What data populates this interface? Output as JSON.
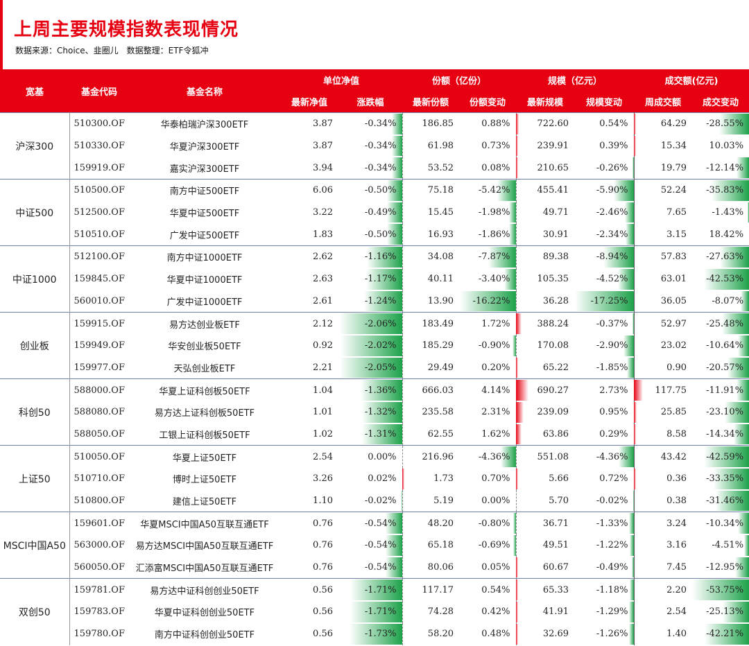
{
  "header": {
    "title": "上周主要规模指数表现情况",
    "source": "数据来源：Choice、韭圈儿",
    "compiler": "数据整理：ETF令狐冲"
  },
  "columns": {
    "broad": "宽基",
    "code": "基金代码",
    "name": "基金名称",
    "nav_group": "单位净值",
    "share_group": "份额（亿份）",
    "scale_group": "规模（亿元）",
    "turnover_group": "成交额(亿元)",
    "nav": "最新净值",
    "change": "涨跌幅",
    "shares": "最新份额",
    "share_change": "份额变动",
    "scale": "最新规模",
    "scale_change": "规模变动",
    "weekly_turnover": "周成交额",
    "turnover_change": "成交变动"
  },
  "colors": {
    "accent": "#e60012",
    "negative": "#1da24a",
    "positive": "#e60012"
  },
  "groups": [
    {
      "category": "沪深300",
      "rows": [
        {
          "code": "510300.OF",
          "name": "华泰柏瑞沪深300ETF",
          "nav": "3.87",
          "change": "-0.34%",
          "shares": "186.85",
          "share_change": "0.88%",
          "scale": "722.60",
          "scale_change": "0.54%",
          "turnover": "64.29",
          "turnover_change": "-28.55%"
        },
        {
          "code": "510330.OF",
          "name": "华夏沪深300ETF",
          "nav": "3.87",
          "change": "-0.34%",
          "shares": "61.98",
          "share_change": "0.73%",
          "scale": "239.91",
          "scale_change": "0.39%",
          "turnover": "15.34",
          "turnover_change": "10.03%"
        },
        {
          "code": "159919.OF",
          "name": "嘉实沪深300ETF",
          "nav": "3.94",
          "change": "-0.34%",
          "shares": "53.52",
          "share_change": "0.08%",
          "scale": "210.65",
          "scale_change": "-0.26%",
          "turnover": "19.79",
          "turnover_change": "-12.14%"
        }
      ]
    },
    {
      "category": "中证500",
      "rows": [
        {
          "code": "510500.OF",
          "name": "南方中证500ETF",
          "nav": "6.06",
          "change": "-0.50%",
          "shares": "75.18",
          "share_change": "-5.42%",
          "scale": "455.41",
          "scale_change": "-5.90%",
          "turnover": "52.24",
          "turnover_change": "-35.83%"
        },
        {
          "code": "512500.OF",
          "name": "华夏中证500ETF",
          "nav": "3.22",
          "change": "-0.49%",
          "shares": "15.45",
          "share_change": "-1.98%",
          "scale": "49.71",
          "scale_change": "-2.46%",
          "turnover": "7.65",
          "turnover_change": "-1.43%"
        },
        {
          "code": "510510.OF",
          "name": "广发中证500ETF",
          "nav": "1.83",
          "change": "-0.50%",
          "shares": "16.93",
          "share_change": "-1.86%",
          "scale": "30.91",
          "scale_change": "-2.34%",
          "turnover": "3.15",
          "turnover_change": "18.42%"
        }
      ]
    },
    {
      "category": "中证1000",
      "rows": [
        {
          "code": "512100.OF",
          "name": "南方中证1000ETF",
          "nav": "2.62",
          "change": "-1.16%",
          "shares": "34.08",
          "share_change": "-7.87%",
          "scale": "89.38",
          "scale_change": "-8.94%",
          "turnover": "57.83",
          "turnover_change": "-27.63%"
        },
        {
          "code": "159845.OF",
          "name": "华夏中证1000ETF",
          "nav": "2.63",
          "change": "-1.17%",
          "shares": "40.11",
          "share_change": "-3.40%",
          "scale": "105.35",
          "scale_change": "-4.52%",
          "turnover": "63.01",
          "turnover_change": "-42.53%"
        },
        {
          "code": "560010.OF",
          "name": "广发中证1000ETF",
          "nav": "2.61",
          "change": "-1.24%",
          "shares": "13.90",
          "share_change": "-16.22%",
          "scale": "36.28",
          "scale_change": "-17.25%",
          "turnover": "36.05",
          "turnover_change": "-8.07%"
        }
      ]
    },
    {
      "category": "创业板",
      "rows": [
        {
          "code": "159915.OF",
          "name": "易方达创业板ETF",
          "nav": "2.12",
          "change": "-2.06%",
          "shares": "183.49",
          "share_change": "1.72%",
          "scale": "388.24",
          "scale_change": "-0.37%",
          "turnover": "52.97",
          "turnover_change": "-25.48%"
        },
        {
          "code": "159949.OF",
          "name": "华安创业板50ETF",
          "nav": "0.92",
          "change": "-2.02%",
          "shares": "185.29",
          "share_change": "-0.90%",
          "scale": "170.08",
          "scale_change": "-2.90%",
          "turnover": "23.02",
          "turnover_change": "-10.64%"
        },
        {
          "code": "159977.OF",
          "name": "天弘创业板ETF",
          "nav": "2.21",
          "change": "-2.05%",
          "shares": "29.49",
          "share_change": "0.20%",
          "scale": "65.22",
          "scale_change": "-1.85%",
          "turnover": "0.90",
          "turnover_change": "-20.57%"
        }
      ]
    },
    {
      "category": "科创50",
      "rows": [
        {
          "code": "588000.OF",
          "name": "华夏上证科创板50ETF",
          "nav": "1.04",
          "change": "-1.36%",
          "shares": "666.03",
          "share_change": "4.14%",
          "scale": "690.27",
          "scale_change": "2.73%",
          "turnover": "117.75",
          "turnover_change": "-11.91%"
        },
        {
          "code": "588080.OF",
          "name": "易方达上证科创板50ETF",
          "nav": "1.01",
          "change": "-1.32%",
          "shares": "235.58",
          "share_change": "2.31%",
          "scale": "239.09",
          "scale_change": "0.95%",
          "turnover": "25.85",
          "turnover_change": "-23.10%"
        },
        {
          "code": "588050.OF",
          "name": "工银上证科创板50ETF",
          "nav": "1.02",
          "change": "-1.31%",
          "shares": "62.55",
          "share_change": "1.62%",
          "scale": "63.86",
          "scale_change": "0.29%",
          "turnover": "8.58",
          "turnover_change": "-14.34%"
        }
      ]
    },
    {
      "category": "上证50",
      "rows": [
        {
          "code": "510050.OF",
          "name": "华夏上证50ETF",
          "nav": "2.54",
          "change": "0.00%",
          "shares": "216.96",
          "share_change": "-4.36%",
          "scale": "551.08",
          "scale_change": "-4.36%",
          "turnover": "43.42",
          "turnover_change": "-42.59%"
        },
        {
          "code": "510710.OF",
          "name": "博时上证50ETF",
          "nav": "3.26",
          "change": "0.02%",
          "shares": "1.73",
          "share_change": "0.70%",
          "scale": "5.66",
          "scale_change": "0.72%",
          "turnover": "0.36",
          "turnover_change": "-33.35%"
        },
        {
          "code": "510800.OF",
          "name": "建信上证50ETF",
          "nav": "1.10",
          "change": "-0.02%",
          "shares": "5.19",
          "share_change": "0.00%",
          "scale": "5.70",
          "scale_change": "-0.02%",
          "turnover": "0.38",
          "turnover_change": "-31.46%"
        }
      ]
    },
    {
      "category": "MSCI中国A50",
      "rows": [
        {
          "code": "159601.OF",
          "name": "华夏MSCI中国A50互联互通ETF",
          "nav": "0.76",
          "change": "-0.54%",
          "shares": "48.20",
          "share_change": "-0.80%",
          "scale": "36.71",
          "scale_change": "-1.33%",
          "turnover": "3.24",
          "turnover_change": "-10.34%"
        },
        {
          "code": "563000.OF",
          "name": "易方达MSCI中国A50互联互通ETF",
          "nav": "0.76",
          "change": "-0.54%",
          "shares": "65.18",
          "share_change": "-0.69%",
          "scale": "49.51",
          "scale_change": "-1.22%",
          "turnover": "3.16",
          "turnover_change": "-4.51%"
        },
        {
          "code": "560050.OF",
          "name": "汇添富MSCI中国A50互联互通ETF",
          "nav": "0.76",
          "change": "-0.54%",
          "shares": "80.06",
          "share_change": "0.05%",
          "scale": "60.67",
          "scale_change": "-0.49%",
          "turnover": "7.45",
          "turnover_change": "-12.95%"
        }
      ]
    },
    {
      "category": "双创50",
      "rows": [
        {
          "code": "159781.OF",
          "name": "易方达中证科创创业50ETF",
          "nav": "0.56",
          "change": "-1.71%",
          "shares": "117.17",
          "share_change": "0.54%",
          "scale": "65.33",
          "scale_change": "-1.18%",
          "turnover": "2.20",
          "turnover_change": "-53.75%"
        },
        {
          "code": "159783.OF",
          "name": "华夏中证科创创业50ETF",
          "nav": "0.56",
          "change": "-1.71%",
          "shares": "74.28",
          "share_change": "0.42%",
          "scale": "41.91",
          "scale_change": "-1.29%",
          "turnover": "2.54",
          "turnover_change": "-25.13%"
        },
        {
          "code": "159780.OF",
          "name": "南方中证科创创业50ETF",
          "nav": "0.56",
          "change": "-1.73%",
          "shares": "58.20",
          "share_change": "0.48%",
          "scale": "32.69",
          "scale_change": "-1.26%",
          "turnover": "1.40",
          "turnover_change": "-42.21%"
        }
      ]
    }
  ]
}
